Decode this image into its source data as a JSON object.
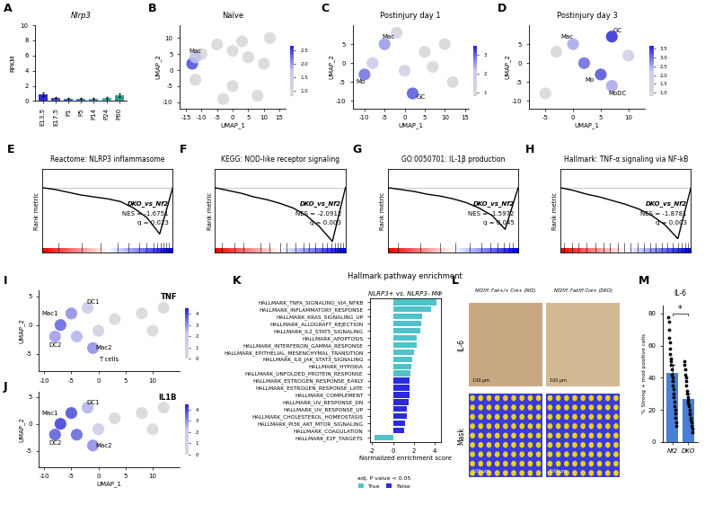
{
  "chart_data": [
    {
      "panel": "A",
      "type": "bar",
      "title": "Nlrp3",
      "ylabel": "RPKM",
      "categories": [
        "E13.5",
        "E17.5",
        "P1",
        "P5",
        "P14",
        "P24",
        "P60"
      ],
      "values": [
        0.85,
        0.45,
        0.3,
        0.3,
        0.3,
        0.4,
        0.75
      ],
      "errors": [
        0.25,
        0.1,
        0.05,
        0.05,
        0.05,
        0.1,
        0.2
      ],
      "colors": [
        "#2a2ad6",
        "#3a4fd4",
        "#3f6fc9",
        "#4189c0",
        "#45a3b4",
        "#3fb0a8",
        "#2aa08a"
      ],
      "ylim": [
        0,
        10
      ],
      "yticks": [
        0,
        2,
        4,
        6,
        8,
        10
      ]
    },
    {
      "panel": "B",
      "type": "umap",
      "title": "Naïve",
      "xlabel": "UMAP_1",
      "ylabel": "UMAP_2",
      "xlim": [
        -17,
        17
      ],
      "ylim": [
        -12,
        14
      ],
      "xticks": [
        -15,
        -10,
        -5,
        0,
        5,
        10,
        15
      ],
      "yticks": [
        -10,
        -5,
        0,
        5,
        10
      ],
      "cells": {
        "x": [
          -10,
          -5,
          0,
          5,
          10,
          0,
          8,
          -12,
          12,
          -13,
          -12,
          3,
          -3
        ],
        "y": [
          5,
          8,
          6,
          4,
          2,
          -5,
          -8,
          -3,
          10,
          2,
          4,
          9,
          -9
        ],
        "values": [
          0,
          0,
          0,
          0,
          0,
          0,
          0,
          0,
          0,
          2.4,
          1.8,
          0,
          0
        ]
      },
      "colorbar": {
        "range": [
          0.8,
          2.7
        ],
        "ticks": [
          {
            "value": 1,
            "label": "1.0"
          },
          {
            "value": 1.5,
            "label": "1.5"
          },
          {
            "value": 2,
            "label": "2.0"
          },
          {
            "value": 2.5,
            "label": "2.5"
          }
        ]
      },
      "annotations": [
        {
          "text": "Mac",
          "x": -12,
          "y": 6
        }
      ]
    },
    {
      "panel": "C",
      "type": "umap",
      "title": "Postinjury day 1",
      "xlabel": "UMAP_1",
      "ylabel": "UMAP_2",
      "xlim": [
        -13,
        16
      ],
      "ylim": [
        -12,
        10
      ],
      "xticks": [
        -10,
        -5,
        0,
        5,
        10,
        15
      ],
      "yticks": [
        -10,
        -5,
        0,
        5
      ],
      "cells": {
        "x": [
          -5,
          -8,
          -10,
          0,
          2,
          5,
          10,
          12,
          -2,
          7
        ],
        "y": [
          5,
          0,
          -3,
          -2,
          -8,
          3,
          5,
          -5,
          8,
          -1
        ],
        "values": [
          2.5,
          2.0,
          2.8,
          1.5,
          3.0,
          0,
          0,
          0,
          1.2,
          0
        ]
      },
      "colorbar": {
        "range": [
          0.8,
          3.5
        ],
        "ticks": [
          1,
          2,
          3
        ]
      },
      "annotations": [
        {
          "text": "Mac",
          "x": -4,
          "y": 7
        },
        {
          "text": "Mo",
          "x": -11,
          "y": -5
        },
        {
          "text": "GC",
          "x": 4,
          "y": -9
        }
      ]
    },
    {
      "panel": "D",
      "type": "umap",
      "title": "Postinjury day 3",
      "xlabel": "UMAP_1",
      "ylabel": "UMAP_2",
      "xlim": [
        -8,
        13
      ],
      "ylim": [
        -12,
        10
      ],
      "xticks": [
        -5,
        0,
        5,
        10
      ],
      "yticks": [
        -10,
        -5,
        0,
        5
      ],
      "cells": {
        "x": [
          0,
          2,
          5,
          7,
          7,
          -5,
          -3,
          10
        ],
        "y": [
          5,
          0,
          -3,
          -6,
          7,
          -8,
          3,
          2
        ],
        "values": [
          2.5,
          3.0,
          3.2,
          2.5,
          3.5,
          0,
          0,
          1.5
        ]
      },
      "colorbar": {
        "range": [
          0.8,
          3.7
        ],
        "ticks": [
          {
            "value": 1,
            "label": "1.0"
          },
          {
            "value": 1.5,
            "label": "1.5"
          },
          {
            "value": 2,
            "label": "2.0"
          },
          {
            "value": 2.5,
            "label": "2.5"
          },
          {
            "value": 3,
            "label": "3.0"
          },
          {
            "value": 3.5,
            "label": "3.5"
          }
        ]
      },
      "annotations": [
        {
          "text": "GC",
          "x": 8,
          "y": 8.5
        },
        {
          "text": "Mac",
          "x": -1,
          "y": 7
        },
        {
          "text": "Mo",
          "x": 3,
          "y": -4.5
        },
        {
          "text": "MoDC",
          "x": 8,
          "y": -8
        }
      ]
    },
    {
      "panel": "E",
      "type": "gsea",
      "title": "Reactome: NLRP3 inflammasome",
      "ylabel": "Rank metric",
      "x": [
        0,
        10,
        20,
        30,
        40,
        50,
        60,
        70,
        80,
        90,
        100
      ],
      "values": [
        0,
        -0.02,
        -0.05,
        -0.08,
        -0.1,
        -0.12,
        -0.15,
        -0.22,
        -0.32,
        -0.5,
        0
      ],
      "hits": [
        12,
        30,
        45,
        58,
        66,
        74,
        80,
        85,
        88,
        91,
        93,
        95,
        97
      ],
      "xlim": [
        0,
        100
      ],
      "ylim": [
        -0.7,
        0.2
      ],
      "xticks": [],
      "yticks": [],
      "tick_labels": false,
      "annotations": [
        {
          "text": "DKO_vs_Nf2"
        },
        {
          "text": "NES = -1.6751"
        },
        {
          "text": "q = 0.023"
        }
      ]
    },
    {
      "panel": "F",
      "type": "gsea",
      "title": "KEGG: NOD-like receptor signaling",
      "ylabel": "Rank metric",
      "x": [
        0,
        10,
        20,
        30,
        40,
        50,
        60,
        70,
        80,
        90,
        100
      ],
      "values": [
        0,
        -0.03,
        -0.06,
        -0.1,
        -0.13,
        -0.17,
        -0.22,
        -0.3,
        -0.42,
        -0.58,
        0
      ],
      "hits": [
        5,
        15,
        22,
        35,
        42,
        50,
        55,
        62,
        68,
        72,
        77,
        82,
        86,
        89,
        92,
        94,
        96,
        98
      ],
      "xlim": [
        0,
        100
      ],
      "ylim": [
        -0.7,
        0.2
      ],
      "xticks": [],
      "yticks": [],
      "tick_labels": false,
      "annotations": [
        {
          "text": "DKO_vs_Nf2"
        },
        {
          "text": "NES = -2.0912"
        },
        {
          "text": "q = 0.003"
        }
      ]
    },
    {
      "panel": "G",
      "type": "gsea",
      "title": "GO:0050701: IL-1β production",
      "ylabel": "Rank metric",
      "x": [
        0,
        10,
        20,
        30,
        40,
        50,
        60,
        70,
        80,
        90,
        100
      ],
      "values": [
        0,
        -0.02,
        -0.04,
        -0.07,
        -0.09,
        -0.12,
        -0.16,
        -0.22,
        -0.3,
        -0.45,
        0
      ],
      "hits": [
        8,
        25,
        40,
        52,
        63,
        72,
        79,
        84,
        89,
        93,
        96
      ],
      "xlim": [
        0,
        100
      ],
      "ylim": [
        -0.7,
        0.2
      ],
      "xticks": [],
      "yticks": [],
      "tick_labels": false,
      "annotations": [
        {
          "text": "DKO_vs_Nf2"
        },
        {
          "text": "NES = -1.5972"
        },
        {
          "text": "q = 0.045"
        }
      ]
    },
    {
      "panel": "H",
      "type": "gsea",
      "title": "Hallmark: TNF-α signaling via NF-kB",
      "ylabel": "Rank metric",
      "x": [
        0,
        10,
        20,
        30,
        40,
        50,
        60,
        70,
        80,
        90,
        100
      ],
      "values": [
        0,
        -0.03,
        -0.07,
        -0.1,
        -0.14,
        -0.18,
        -0.23,
        -0.3,
        -0.4,
        -0.55,
        0
      ],
      "hits": [
        3,
        9,
        14,
        20,
        27,
        33,
        38,
        44,
        49,
        54,
        59,
        64,
        69,
        73,
        78,
        82,
        86,
        90,
        93,
        96,
        98
      ],
      "xlim": [
        0,
        100
      ],
      "ylim": [
        -0.7,
        0.2
      ],
      "xticks": [],
      "yticks": [],
      "tick_labels": false,
      "annotations": [
        {
          "text": "DKO_vs_Nf2"
        },
        {
          "text": "NES = -1.8781"
        },
        {
          "text": "q = 0.003"
        }
      ]
    },
    {
      "panel": "I",
      "type": "umap",
      "title": "TNF",
      "ylabel": "UMAP_2",
      "xlim": [
        -11,
        15
      ],
      "ylim": [
        -8,
        6
      ],
      "xticks": [
        -10,
        -5,
        0,
        5,
        10
      ],
      "yticks": [
        -5,
        0,
        5
      ],
      "cells": {
        "x": [
          -7,
          -5,
          -4,
          -2,
          0,
          -1,
          3,
          8,
          10,
          12,
          -8
        ],
        "y": [
          0,
          2,
          -2,
          3,
          -1,
          -4,
          1,
          2,
          -1,
          3,
          -2
        ],
        "values": [
          3.5,
          3.0,
          2.5,
          2.0,
          1.0,
          3.0,
          0,
          0,
          0,
          0,
          2.8
        ]
      },
      "colorbar": {
        "range": [
          0,
          4.5
        ],
        "ticks": [
          0,
          1,
          2,
          3,
          4
        ]
      },
      "annotations": [
        {
          "text": "Mac1",
          "x": -9,
          "y": 2
        },
        {
          "text": "DC1",
          "x": -1,
          "y": 4
        },
        {
          "text": "DC2",
          "x": -8,
          "y": -3.5
        },
        {
          "text": "Mac2",
          "x": 1,
          "y": -4
        },
        {
          "text": "T cells",
          "x": 2,
          "y": -6
        }
      ]
    },
    {
      "panel": "J",
      "type": "umap",
      "title": "IL1B",
      "xlabel": "UMAP_1",
      "ylabel": "UMAP_2",
      "xlim": [
        -11,
        15
      ],
      "ylim": [
        -8,
        6
      ],
      "xticks": [
        -10,
        -5,
        0,
        5,
        10
      ],
      "yticks": [
        -5,
        0,
        5
      ],
      "cells": {
        "x": [
          -7,
          -5,
          -4,
          -2,
          0,
          -1,
          3,
          8,
          10,
          12,
          -8
        ],
        "y": [
          0,
          2,
          -2,
          3,
          -1,
          -4,
          1,
          2,
          -1,
          3,
          -2
        ],
        "values": [
          4.0,
          3.8,
          3.5,
          2.5,
          1.5,
          3.0,
          0,
          0,
          0,
          0,
          3.6
        ]
      },
      "colorbar": {
        "range": [
          0,
          4.5
        ],
        "ticks": [
          0,
          1,
          2,
          3,
          4
        ]
      },
      "annotations": [
        {
          "text": "Mac1",
          "x": -9,
          "y": 2
        },
        {
          "text": "DC1",
          "x": -1,
          "y": 4
        },
        {
          "text": "DC2",
          "x": -8,
          "y": -3.5
        },
        {
          "text": "Mac2",
          "x": 1,
          "y": -4
        }
      ]
    },
    {
      "panel": "K",
      "type": "bar",
      "orientation": "horizontal",
      "title": "Hallmark pathway enrichment",
      "subtitle": "NLRP3+ vs. NLRP3- MΦ",
      "xlabel": "Normalized enrichment score",
      "legend_title": "adj. P value < 0.05",
      "legend": "lower center",
      "categories": [
        "HALLMARK_TNFA_SIGNALING_VIA_NFKB",
        "HALLMARK_INFLAMMATORY_RESPONSE",
        "HALLMARK_KRAS_SIGNALING_UP",
        "HALLMARK_ALLOGRAFT_REJECTION",
        "HALLMARK_IL2_STAT5_SIGNALING",
        "HALLMARK_APOPTOSIS",
        "HALLMARK_INTERFERON_GAMMA_RESPONSE",
        "HALLMARK_EPITHELIAL_MESENCHYMAL_TRANSITION",
        "HALLMARK_IL6_JAK_STAT3_SIGNALING",
        "HALLMARK_HYPOXIA",
        "HALLMARK_UNFOLDED_PROTEIN_RESPONSE",
        "HALLMARK_ESTROGEN_RESPONSE_EARLY",
        "HALLMARK_ESTROGEN_RESPONSE_LATE",
        "HALLMARK_COMPLEMENT",
        "HALLMARK_UV_RESPONSE_DN",
        "HALLMARK_UV_RESPONSE_UP",
        "HALLMARK_CHOLESTEROL_HOMEOSTASIS",
        "HALLMARK_PI3K_AKT_MTOR_SIGNALING",
        "HALLMARK_COAGULATION",
        "HALLMARK_E2F_TARGETS"
      ],
      "series": [
        {
          "name": "True",
          "color": "#4fc3c9",
          "values": [
            4.2,
            3.7,
            2.8,
            2.7,
            2.6,
            2.3,
            2.3,
            2.0,
            1.9,
            1.8,
            1.7,
            null,
            null,
            null,
            null,
            null,
            null,
            null,
            null,
            -1.8
          ]
        },
        {
          "name": "False",
          "color": "#2b2bd9",
          "values": [
            null,
            null,
            null,
            null,
            null,
            null,
            null,
            null,
            null,
            null,
            null,
            1.6,
            1.6,
            1.6,
            1.5,
            1.3,
            1.3,
            1.2,
            1.1,
            null
          ]
        }
      ],
      "xlim": [
        -2.2,
        4.6
      ],
      "xticks": [
        -2,
        0,
        2,
        4
      ]
    },
    {
      "panel": "L",
      "type": "image",
      "columns": [
        "Nf2f/f; Fak+/+ Cre+ (Nf2)",
        "Nf2f/f; Fakf/f Cre+ (DKO)"
      ],
      "rows": [
        "IL-6",
        "Mask"
      ],
      "scale_bar": "100 μm"
    },
    {
      "panel": "M",
      "type": "bar",
      "title": "IL-6",
      "ylabel": "% Strong + mod positive cells",
      "categories": [
        "Nf2",
        "DKO"
      ],
      "values": [
        43,
        27
      ],
      "errors": [
        5,
        3
      ],
      "colors": [
        "#4a7fd4",
        "#4a7fd4"
      ],
      "points": [
        [
          78,
          75,
          70,
          65,
          62,
          58,
          55,
          52,
          50,
          48,
          45,
          42,
          40,
          38,
          35,
          33,
          30,
          28,
          25,
          22,
          20,
          18,
          15,
          12,
          10
        ],
        [
          50,
          48,
          45,
          42,
          40,
          38,
          35,
          32,
          30,
          28,
          26,
          25,
          23,
          22,
          20,
          18,
          17,
          15,
          14,
          12,
          10,
          8,
          6
        ]
      ],
      "annotations": [
        {
          "text": "*"
        }
      ],
      "ylim": [
        0,
        85
      ],
      "yticks": [
        0,
        20,
        40,
        60,
        80
      ]
    }
  ]
}
